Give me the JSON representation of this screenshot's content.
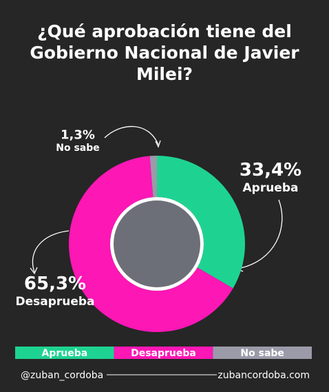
{
  "chart_data": {
    "type": "donut",
    "title": "¿Qué aprobación tiene del Gobierno Nacional de Javier Milei?",
    "categories": [
      "Aprueba",
      "Desaprueba",
      "No sabe"
    ],
    "values": [
      33.4,
      65.3,
      1.3
    ],
    "value_labels": [
      "33,4%",
      "65,3%",
      "1,3%"
    ],
    "colors": [
      "#1ed391",
      "#fd17b5",
      "#9b9aa9"
    ]
  },
  "footer": {
    "handle": "@zuban_cordoba",
    "website": "zubancordoba.com"
  }
}
